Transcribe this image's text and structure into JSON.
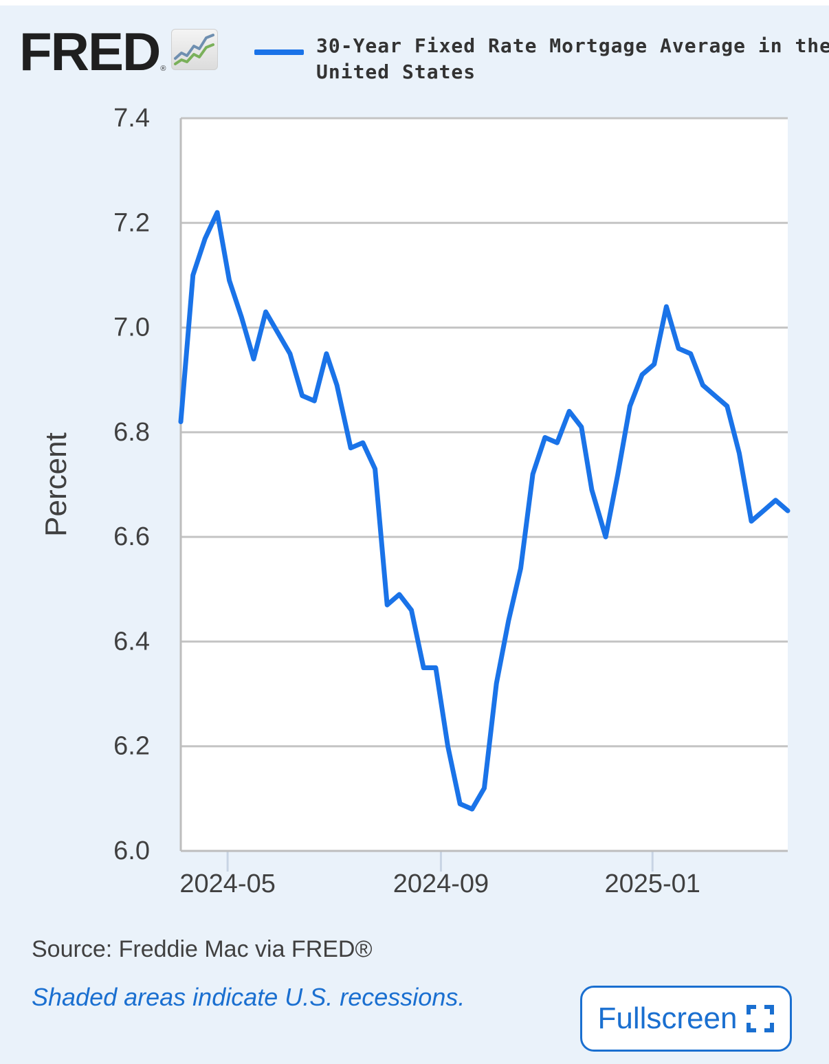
{
  "header": {
    "logo_text": "FRED",
    "logo_reg": "®",
    "logo_icon": "line-chart-icon",
    "legend_label": "30-Year Fixed Rate Mortgage Average in the United States",
    "series_color": "#1a73e8"
  },
  "footer": {
    "source": "Source: Freddie Mac via FRED®",
    "recession_note": "Shaded areas indicate U.S. recessions.",
    "fullscreen_label": "Fullscreen",
    "fullscreen_icon": "expand-icon",
    "link_color": "#1a6fd0"
  },
  "chart_data": {
    "type": "line",
    "ylabel": "Percent",
    "ylim": [
      6.0,
      7.4
    ],
    "yticks": [
      "6.0",
      "6.2",
      "6.4",
      "6.6",
      "6.8",
      "7.0",
      "7.2",
      "7.4"
    ],
    "xlim": [
      "2024-04-04",
      "2025-03-20"
    ],
    "xticks": [
      {
        "label": "2024-05",
        "date": "2024-05-01"
      },
      {
        "label": "2024-09",
        "date": "2024-09-01"
      },
      {
        "label": "2025-01",
        "date": "2025-01-01"
      }
    ],
    "grid": true,
    "series": [
      {
        "name": "30-Year Fixed Rate Mortgage Average in the United States",
        "x": [
          "2024-04-04",
          "2024-04-11",
          "2024-04-18",
          "2024-04-25",
          "2024-05-02",
          "2024-05-09",
          "2024-05-16",
          "2024-05-23",
          "2024-05-30",
          "2024-06-06",
          "2024-06-13",
          "2024-06-20",
          "2024-06-27",
          "2024-07-03",
          "2024-07-11",
          "2024-07-18",
          "2024-07-25",
          "2024-08-01",
          "2024-08-08",
          "2024-08-15",
          "2024-08-22",
          "2024-08-29",
          "2024-09-05",
          "2024-09-12",
          "2024-09-19",
          "2024-09-26",
          "2024-10-03",
          "2024-10-10",
          "2024-10-17",
          "2024-10-24",
          "2024-10-31",
          "2024-11-07",
          "2024-11-14",
          "2024-11-21",
          "2024-11-27",
          "2024-12-05",
          "2024-12-12",
          "2024-12-19",
          "2024-12-26",
          "2025-01-02",
          "2025-01-09",
          "2025-01-16",
          "2025-01-23",
          "2025-01-30",
          "2025-02-06",
          "2025-02-13",
          "2025-02-20",
          "2025-02-27",
          "2025-03-06",
          "2025-03-13",
          "2025-03-20"
        ],
        "values": [
          6.82,
          7.1,
          7.17,
          7.22,
          7.09,
          7.02,
          6.94,
          7.03,
          6.99,
          6.95,
          6.87,
          6.86,
          6.95,
          6.89,
          6.77,
          6.78,
          6.73,
          6.47,
          6.49,
          6.46,
          6.35,
          6.35,
          6.2,
          6.09,
          6.08,
          6.12,
          6.32,
          6.44,
          6.54,
          6.72,
          6.79,
          6.78,
          6.84,
          6.81,
          6.69,
          6.6,
          6.72,
          6.85,
          6.91,
          6.93,
          7.04,
          6.96,
          6.95,
          6.89,
          6.87,
          6.85,
          6.76,
          6.63,
          6.65,
          6.67,
          6.65
        ]
      }
    ]
  }
}
